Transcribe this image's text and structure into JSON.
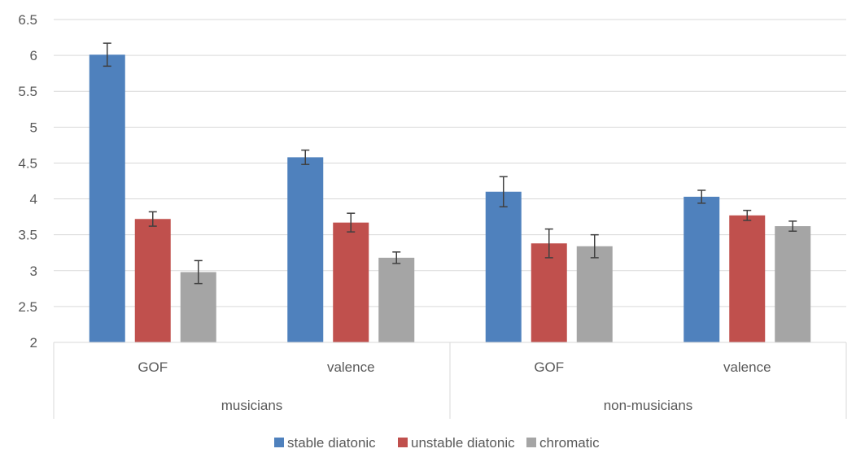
{
  "chart_data": {
    "type": "bar",
    "title": "",
    "xlabel": "",
    "ylabel": "",
    "ylim": [
      2,
      6.5
    ],
    "yticks": [
      "2",
      "2.5",
      "3",
      "3.5",
      "4",
      "4.5",
      "5",
      "5.5",
      "6",
      "6.5"
    ],
    "ytick_values": [
      2,
      2.5,
      3,
      3.5,
      4,
      4.5,
      5,
      5.5,
      6,
      6.5
    ],
    "grid": true,
    "legend_position": "bottom",
    "groups": [
      {
        "label": "musicians",
        "categories": [
          "GOF",
          "valence"
        ]
      },
      {
        "label": "non-musicians",
        "categories": [
          "GOF",
          "valence"
        ]
      }
    ],
    "categories": [
      "GOF",
      "valence",
      "GOF",
      "valence"
    ],
    "series": [
      {
        "name": "stable diatonic",
        "color": "#4f81bd",
        "values": [
          6.01,
          4.58,
          4.1,
          4.03
        ],
        "errors": [
          0.16,
          0.1,
          0.21,
          0.09
        ]
      },
      {
        "name": "unstable diatonic",
        "color": "#c0504d",
        "values": [
          3.72,
          3.67,
          3.38,
          3.77
        ],
        "errors": [
          0.1,
          0.13,
          0.2,
          0.07
        ]
      },
      {
        "name": "chromatic",
        "color": "#a5a5a5",
        "values": [
          2.98,
          3.18,
          3.34,
          3.62
        ],
        "errors": [
          0.16,
          0.08,
          0.16,
          0.07
        ]
      }
    ]
  }
}
